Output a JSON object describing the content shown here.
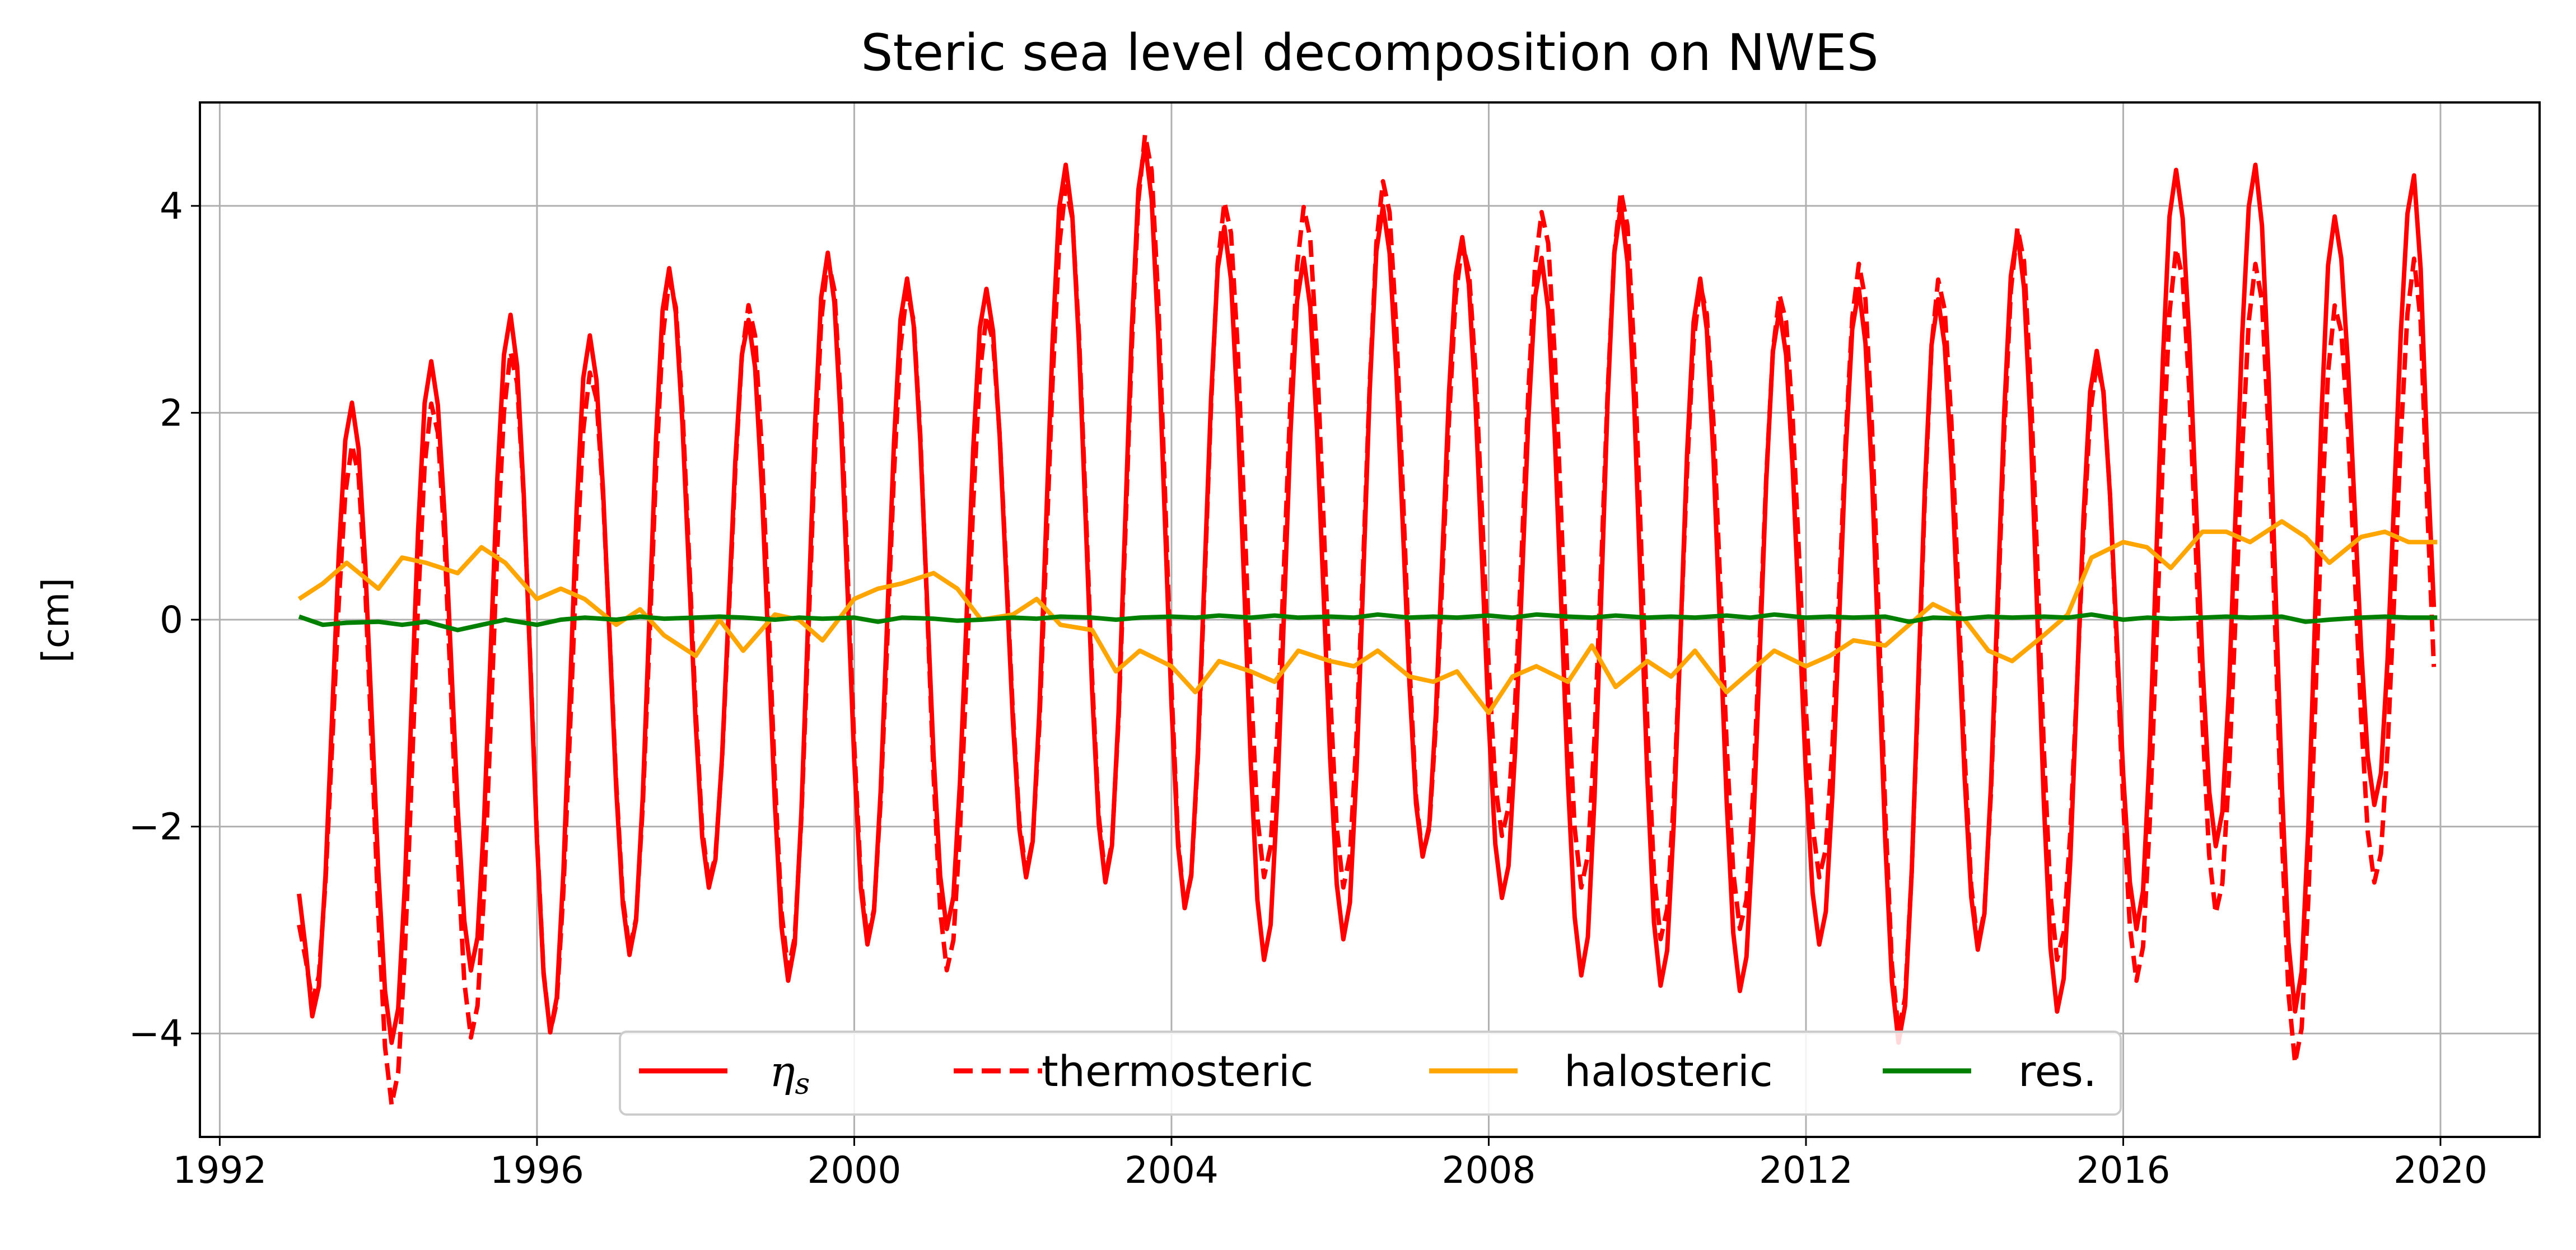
{
  "chart_data": {
    "type": "line",
    "title": "Steric sea level decomposition on NWES",
    "xlabel": "",
    "ylabel": "[cm]",
    "xlim": [
      1991.75,
      2021.25
    ],
    "ylim": [
      -5,
      5
    ],
    "x_ticks": [
      1992,
      1996,
      2000,
      2004,
      2008,
      2012,
      2016,
      2020
    ],
    "x_tick_labels": [
      "1992",
      "1996",
      "2000",
      "2004",
      "2008",
      "2012",
      "2016",
      "2020"
    ],
    "y_ticks": [
      -4,
      -2,
      0,
      2,
      4
    ],
    "y_tick_labels": [
      "−4",
      "−2",
      "0",
      "2",
      "4"
    ],
    "grid": true,
    "legend_position": "lower center",
    "time_range": [
      1993.0,
      2019.96
    ],
    "annual_extrema": {
      "years": [
        1993,
        1994,
        1995,
        1996,
        1997,
        1998,
        1999,
        2000,
        2001,
        2002,
        2003,
        2004,
        2005,
        2006,
        2007,
        2008,
        2009,
        2010,
        2011,
        2012,
        2013,
        2014,
        2015,
        2016,
        2017,
        2018,
        2019
      ],
      "eta_s_max": [
        2.1,
        2.5,
        2.95,
        2.75,
        3.4,
        2.9,
        3.55,
        3.3,
        3.2,
        4.4,
        4.6,
        3.8,
        3.5,
        4.0,
        3.7,
        3.5,
        4.0,
        3.3,
        3.0,
        3.2,
        3.1,
        3.75,
        2.6,
        4.35,
        4.4,
        3.9,
        4.3
      ],
      "eta_s_min": [
        -3.85,
        -4.1,
        -3.4,
        -4.0,
        -3.25,
        -2.6,
        -3.5,
        -3.15,
        -3.0,
        -2.5,
        -2.55,
        -2.8,
        -3.3,
        -3.1,
        -2.3,
        -2.7,
        -3.45,
        -3.55,
        -3.6,
        -3.15,
        -4.1,
        -3.2,
        -3.8,
        -3.0,
        -2.2,
        -3.8,
        -1.8
      ],
      "thermo_max": [
        1.7,
        2.1,
        2.6,
        2.4,
        3.3,
        3.05,
        3.5,
        3.2,
        2.95,
        4.2,
        4.7,
        4.05,
        4.0,
        4.25,
        3.65,
        3.95,
        4.15,
        3.25,
        3.15,
        3.45,
        3.3,
        3.8,
        2.5,
        3.6,
        3.45,
        3.05,
        3.5
      ],
      "thermo_min": [
        -3.7,
        -4.7,
        -4.05,
        -4.0,
        -3.2,
        -2.55,
        -3.4,
        -3.1,
        -3.4,
        -2.45,
        -2.5,
        -2.8,
        -2.5,
        -2.6,
        -2.3,
        -2.1,
        -2.6,
        -3.1,
        -3.0,
        -2.5,
        -4.0,
        -3.15,
        -3.3,
        -3.5,
        -2.85,
        -4.3,
        -2.55
      ]
    },
    "series": [
      {
        "name": "ηs",
        "color": "#ff0000",
        "style": "solid",
        "start_value": -2.65,
        "end_value": -0.1
      },
      {
        "name": "thermosteric",
        "color": "#ff0000",
        "style": "dashed",
        "start_value": -2.95,
        "end_value": -0.7
      },
      {
        "name": "halosteric",
        "color": "#ffa500",
        "style": "solid",
        "x": [
          1993.0,
          1993.3,
          1993.6,
          1994.0,
          1994.3,
          1994.6,
          1995.0,
          1995.3,
          1995.6,
          1996.0,
          1996.3,
          1996.6,
          1997.0,
          1997.3,
          1997.6,
          1998.0,
          1998.3,
          1998.6,
          1999.0,
          1999.3,
          1999.6,
          2000.0,
          2000.3,
          2000.6,
          2001.0,
          2001.3,
          2001.6,
          2002.0,
          2002.3,
          2002.6,
          2003.0,
          2003.3,
          2003.6,
          2004.0,
          2004.3,
          2004.6,
          2005.0,
          2005.3,
          2005.6,
          2006.0,
          2006.3,
          2006.6,
          2007.0,
          2007.3,
          2007.6,
          2008.0,
          2008.3,
          2008.6,
          2009.0,
          2009.3,
          2009.6,
          2010.0,
          2010.3,
          2010.6,
          2011.0,
          2011.3,
          2011.6,
          2012.0,
          2012.3,
          2012.6,
          2013.0,
          2013.3,
          2013.6,
          2014.0,
          2014.3,
          2014.6,
          2015.0,
          2015.3,
          2015.6,
          2016.0,
          2016.3,
          2016.6,
          2017.0,
          2017.3,
          2017.6,
          2018.0,
          2018.3,
          2018.6,
          2019.0,
          2019.3,
          2019.6,
          2019.96
        ],
        "values": [
          0.2,
          0.35,
          0.55,
          0.3,
          0.6,
          0.55,
          0.45,
          0.7,
          0.55,
          0.2,
          0.3,
          0.2,
          -0.05,
          0.1,
          -0.15,
          -0.35,
          0.0,
          -0.3,
          0.05,
          0.0,
          -0.2,
          0.2,
          0.3,
          0.35,
          0.45,
          0.3,
          0.0,
          0.05,
          0.2,
          -0.05,
          -0.1,
          -0.5,
          -0.3,
          -0.45,
          -0.7,
          -0.4,
          -0.5,
          -0.6,
          -0.3,
          -0.4,
          -0.45,
          -0.3,
          -0.55,
          -0.6,
          -0.5,
          -0.9,
          -0.55,
          -0.45,
          -0.6,
          -0.25,
          -0.65,
          -0.4,
          -0.55,
          -0.3,
          -0.7,
          -0.5,
          -0.3,
          -0.45,
          -0.35,
          -0.2,
          -0.25,
          -0.05,
          0.15,
          0.0,
          -0.3,
          -0.4,
          -0.15,
          0.05,
          0.6,
          0.75,
          0.7,
          0.5,
          0.85,
          0.85,
          0.75,
          0.95,
          0.8,
          0.55,
          0.8,
          0.85,
          0.75,
          0.75
        ]
      },
      {
        "name": "res.",
        "color": "#008000",
        "style": "solid",
        "x": [
          1993.0,
          1993.3,
          1993.6,
          1994.0,
          1994.3,
          1994.6,
          1995.0,
          1995.3,
          1995.6,
          1996.0,
          1996.3,
          1996.6,
          1997.0,
          1997.3,
          1997.6,
          1998.0,
          1998.3,
          1998.6,
          1999.0,
          1999.3,
          1999.6,
          2000.0,
          2000.3,
          2000.6,
          2001.0,
          2001.3,
          2001.6,
          2002.0,
          2002.3,
          2002.6,
          2003.0,
          2003.3,
          2003.6,
          2004.0,
          2004.3,
          2004.6,
          2005.0,
          2005.3,
          2005.6,
          2006.0,
          2006.3,
          2006.6,
          2007.0,
          2007.3,
          2007.6,
          2008.0,
          2008.3,
          2008.6,
          2009.0,
          2009.3,
          2009.6,
          2010.0,
          2010.3,
          2010.6,
          2011.0,
          2011.3,
          2011.6,
          2012.0,
          2012.3,
          2012.6,
          2013.0,
          2013.3,
          2013.6,
          2014.0,
          2014.3,
          2014.6,
          2015.0,
          2015.3,
          2015.6,
          2016.0,
          2016.3,
          2016.6,
          2017.0,
          2017.3,
          2017.6,
          2018.0,
          2018.3,
          2018.6,
          2019.0,
          2019.3,
          2019.6,
          2019.96
        ],
        "values": [
          0.03,
          -0.05,
          -0.03,
          -0.02,
          -0.05,
          -0.02,
          -0.1,
          -0.05,
          0.0,
          -0.05,
          0.0,
          0.02,
          0.0,
          0.03,
          0.01,
          0.02,
          0.03,
          0.02,
          0.0,
          0.02,
          0.01,
          0.02,
          -0.02,
          0.02,
          0.01,
          -0.01,
          0.0,
          0.02,
          0.01,
          0.03,
          0.02,
          0.0,
          0.02,
          0.03,
          0.02,
          0.04,
          0.02,
          0.04,
          0.02,
          0.03,
          0.02,
          0.05,
          0.02,
          0.03,
          0.02,
          0.04,
          0.02,
          0.05,
          0.03,
          0.02,
          0.04,
          0.02,
          0.03,
          0.02,
          0.04,
          0.02,
          0.05,
          0.02,
          0.03,
          0.02,
          0.03,
          -0.02,
          0.02,
          0.01,
          0.03,
          0.02,
          0.03,
          0.02,
          0.05,
          0.0,
          0.02,
          0.01,
          0.02,
          0.03,
          0.02,
          0.03,
          -0.02,
          0.0,
          0.02,
          0.03,
          0.02,
          0.02
        ]
      }
    ]
  }
}
